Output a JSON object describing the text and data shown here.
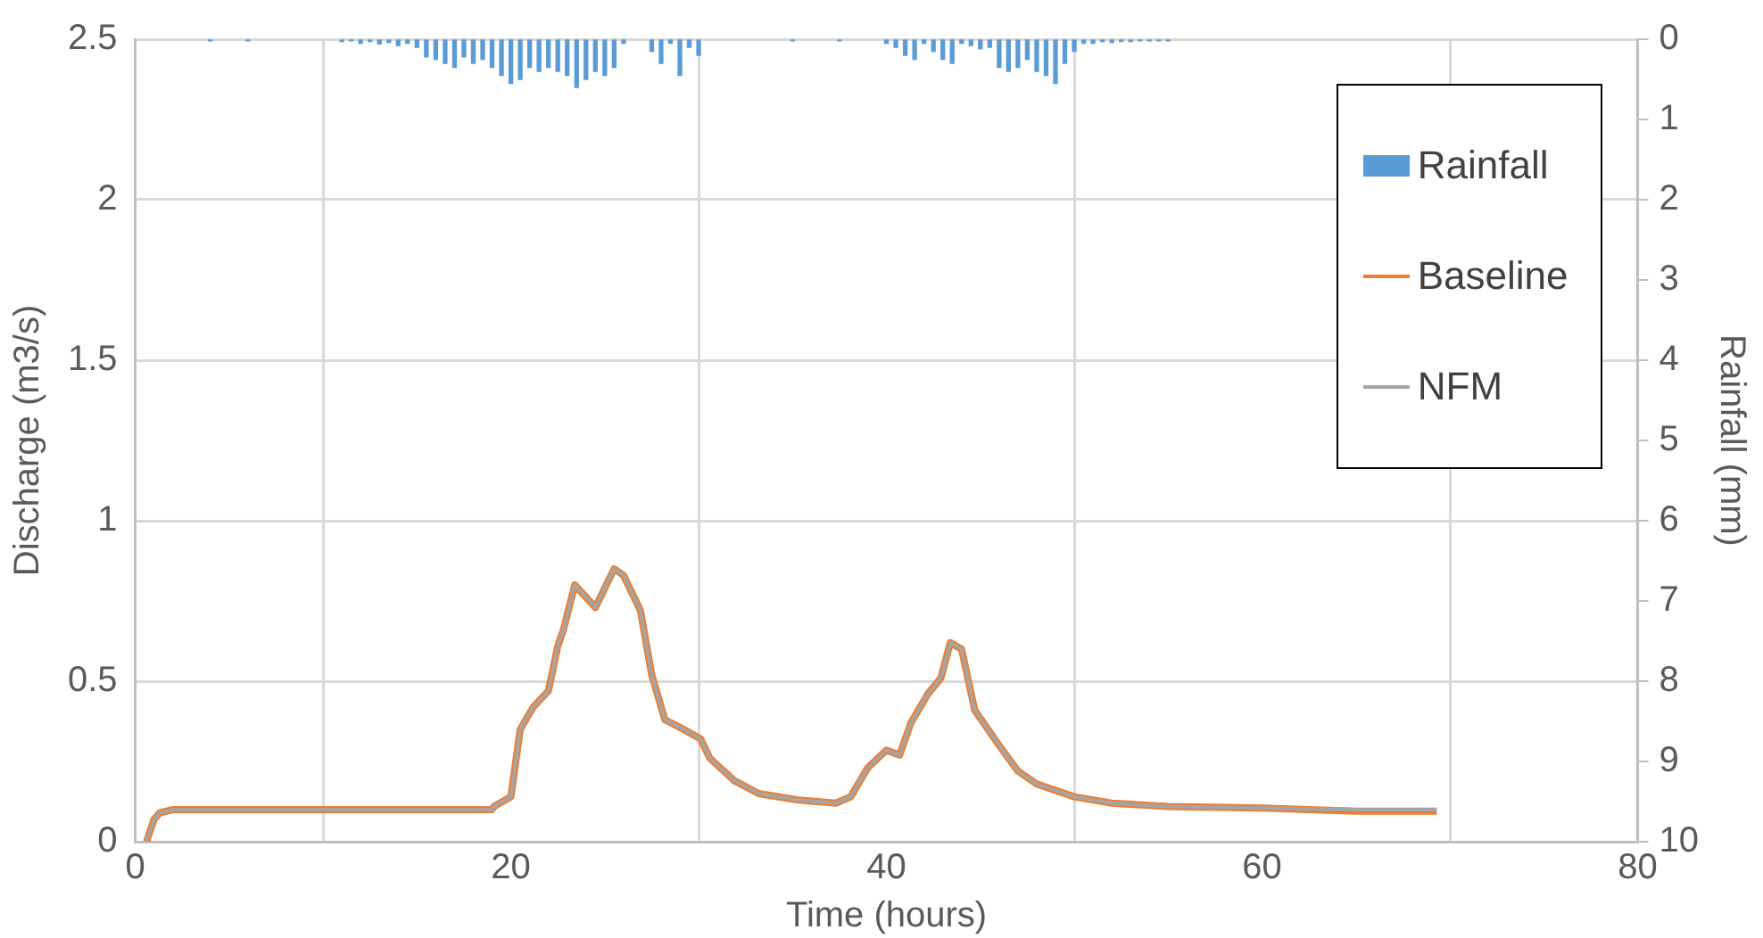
{
  "chart_data": {
    "type": "line",
    "xlabel": "Time (hours)",
    "ylabel": "Discharge (m3/s)",
    "y2label": "Rainfall (mm)",
    "xlim": [
      0,
      80
    ],
    "xticks": [
      0,
      20,
      40,
      60,
      80
    ],
    "ylim": [
      0,
      2.5
    ],
    "yticks": [
      0,
      0.5,
      1,
      1.5,
      2,
      2.5
    ],
    "y2lim": [
      10,
      0
    ],
    "y2ticks": [
      0,
      1,
      2,
      3,
      4,
      5,
      6,
      7,
      8,
      9,
      10
    ],
    "grid": true,
    "legend": "top right",
    "marker": "none",
    "line_style": "solid",
    "series": [
      {
        "name": "Rainfall",
        "type": "bar",
        "axis": "y2",
        "color": "#5b9bd5",
        "x": [
          4,
          6,
          11,
          11.5,
          12,
          12.5,
          13,
          13.5,
          14,
          14.5,
          15,
          15.5,
          16,
          16.5,
          17,
          17.5,
          18,
          18.5,
          19,
          19.5,
          20,
          20.5,
          21,
          21.5,
          22,
          22.5,
          23,
          23.5,
          24,
          24.5,
          25,
          25.5,
          26,
          27.5,
          28,
          28.5,
          29,
          29.5,
          30,
          35,
          37.5,
          40,
          40.5,
          41,
          41.5,
          42,
          42.5,
          43,
          43.5,
          44,
          44.5,
          45,
          45.5,
          46,
          46.5,
          47,
          47.5,
          48,
          48.5,
          49,
          49.5,
          50,
          50.5,
          51,
          51.5,
          52,
          52.5,
          53,
          53.5,
          54,
          54.5,
          55
        ],
        "values": [
          0.02,
          0.02,
          0.03,
          0.02,
          0.05,
          0.03,
          0.06,
          0.04,
          0.08,
          0.05,
          0.1,
          0.22,
          0.25,
          0.3,
          0.35,
          0.22,
          0.3,
          0.25,
          0.35,
          0.45,
          0.55,
          0.5,
          0.35,
          0.4,
          0.35,
          0.4,
          0.45,
          0.6,
          0.5,
          0.4,
          0.45,
          0.35,
          0.05,
          0.15,
          0.3,
          0.05,
          0.45,
          0.1,
          0.2,
          0.02,
          0.02,
          0.05,
          0.1,
          0.2,
          0.25,
          0.05,
          0.15,
          0.25,
          0.3,
          0.05,
          0.08,
          0.12,
          0.1,
          0.35,
          0.4,
          0.35,
          0.25,
          0.4,
          0.45,
          0.55,
          0.3,
          0.15,
          0.05,
          0.05,
          0.03,
          0.04,
          0.03,
          0.03,
          0.02,
          0.02,
          0.02,
          0.02
        ]
      },
      {
        "name": "Baseline",
        "color": "#ed7d31",
        "x": [
          0.6,
          1,
          1.3,
          2,
          19,
          19.1,
          20,
          20.5,
          21.2,
          22,
          22.5,
          22.8,
          23.4,
          24.5,
          25.5,
          26,
          26.9,
          27.5,
          28.2,
          29.2,
          30.1,
          30.6,
          31.9,
          33.2,
          35.3,
          37.3,
          38.1,
          39,
          40,
          40.7,
          41.3,
          42.2,
          42.9,
          43.4,
          44,
          44.7,
          46,
          47,
          48,
          50,
          52,
          55,
          60,
          65,
          69.3
        ],
        "values": [
          0,
          0.07,
          0.09,
          0.1,
          0.1,
          0.11,
          0.14,
          0.35,
          0.42,
          0.47,
          0.61,
          0.66,
          0.8,
          0.73,
          0.85,
          0.83,
          0.72,
          0.52,
          0.38,
          0.35,
          0.32,
          0.26,
          0.19,
          0.15,
          0.13,
          0.12,
          0.14,
          0.23,
          0.285,
          0.27,
          0.37,
          0.46,
          0.51,
          0.62,
          0.6,
          0.41,
          0.3,
          0.22,
          0.18,
          0.14,
          0.12,
          0.11,
          0.105,
          0.095,
          0.095
        ]
      },
      {
        "name": "NFM",
        "color": "#a5a5a5",
        "x": [
          0.6,
          1,
          1.3,
          2,
          19,
          19.1,
          20,
          20.5,
          21.2,
          22,
          22.5,
          22.8,
          23.4,
          24.5,
          25.5,
          26,
          26.9,
          27.5,
          28.2,
          29.2,
          30.1,
          30.6,
          31.9,
          33.2,
          35.3,
          37.3,
          38.1,
          39,
          40,
          40.7,
          41.3,
          42.2,
          42.9,
          43.4,
          44,
          44.7,
          46,
          47,
          48,
          50,
          52,
          55,
          60,
          65,
          69.3
        ],
        "values": [
          0,
          0.07,
          0.09,
          0.1,
          0.1,
          0.11,
          0.14,
          0.35,
          0.42,
          0.47,
          0.61,
          0.66,
          0.8,
          0.73,
          0.85,
          0.83,
          0.72,
          0.52,
          0.38,
          0.35,
          0.32,
          0.26,
          0.19,
          0.15,
          0.13,
          0.12,
          0.14,
          0.23,
          0.285,
          0.27,
          0.37,
          0.46,
          0.51,
          0.62,
          0.6,
          0.41,
          0.3,
          0.22,
          0.18,
          0.14,
          0.12,
          0.11,
          0.105,
          0.1,
          0.1
        ]
      }
    ]
  }
}
